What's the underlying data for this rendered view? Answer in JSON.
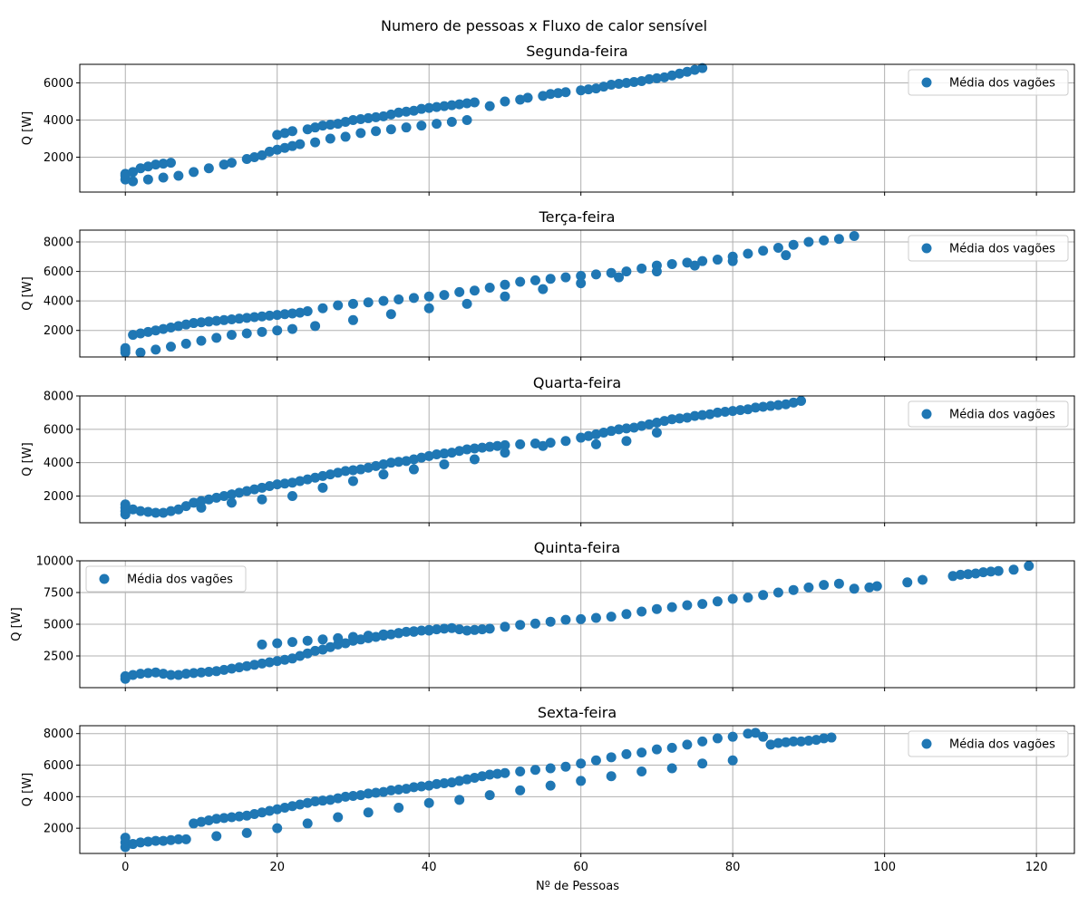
{
  "figure": {
    "suptitle": "Numero de pessoas x Fluxo de calor sensível",
    "xlabel": "Nº de Pessoas",
    "marker_color": "#1f77b4",
    "grid_color": "#b0b0b0"
  },
  "chart_data": [
    {
      "type": "scatter",
      "title": "Segunda-feira",
      "xlabel": "",
      "ylabel": "Q [W]",
      "xlim": [
        -6,
        125
      ],
      "ylim": [
        120,
        7000
      ],
      "xticks": [
        "0",
        "20",
        "40",
        "60",
        "80",
        "100",
        "120"
      ],
      "yticks": [
        "2000",
        "4000",
        "6000"
      ],
      "grid": true,
      "legend": {
        "label": "Média dos vagões",
        "position": "upper right"
      },
      "series": [
        {
          "name": "Média dos vagões",
          "x": [
            0,
            0,
            0,
            1,
            2,
            3,
            4,
            5,
            6,
            1,
            3,
            5,
            7,
            9,
            11,
            13,
            14,
            16,
            17,
            18,
            19,
            20,
            21,
            22,
            20,
            21,
            22,
            24,
            25,
            26,
            27,
            28,
            29,
            30,
            31,
            32,
            33,
            34,
            35,
            36,
            37,
            38,
            39,
            40,
            41,
            42,
            43,
            44,
            45,
            46,
            48,
            50,
            52,
            53,
            55,
            56,
            57,
            58,
            60,
            61,
            62,
            63,
            64,
            65,
            66,
            67,
            68,
            69,
            70,
            71,
            72,
            73,
            74,
            75,
            76,
            23,
            25,
            27,
            29,
            31,
            33,
            35,
            37,
            39,
            41,
            43,
            45
          ],
          "y": [
            800,
            1000,
            1100,
            1200,
            1400,
            1500,
            1600,
            1650,
            1700,
            700,
            800,
            900,
            1000,
            1200,
            1400,
            1600,
            1700,
            1900,
            2000,
            2100,
            2300,
            2400,
            2500,
            2600,
            3200,
            3300,
            3400,
            3500,
            3600,
            3700,
            3750,
            3800,
            3900,
            4000,
            4050,
            4100,
            4150,
            4200,
            4300,
            4400,
            4450,
            4500,
            4600,
            4650,
            4700,
            4750,
            4800,
            4850,
            4900,
            4950,
            4750,
            5000,
            5100,
            5200,
            5300,
            5400,
            5450,
            5500,
            5600,
            5650,
            5700,
            5800,
            5900,
            5950,
            6000,
            6050,
            6100,
            6200,
            6250,
            6300,
            6400,
            6500,
            6600,
            6700,
            6800,
            2700,
            2800,
            3000,
            3100,
            3300,
            3400,
            3500,
            3600,
            3700,
            3800,
            3900,
            4000
          ]
        }
      ]
    },
    {
      "type": "scatter",
      "title": "Terça-feira",
      "xlabel": "",
      "ylabel": "Q [W]",
      "xlim": [
        -6,
        125
      ],
      "ylim": [
        200,
        8800
      ],
      "xticks": [
        "0",
        "20",
        "40",
        "60",
        "80",
        "100",
        "120"
      ],
      "yticks": [
        "2000",
        "4000",
        "6000",
        "8000"
      ],
      "grid": true,
      "legend": {
        "label": "Média dos vagões",
        "position": "upper right"
      },
      "series": [
        {
          "name": "Média dos vagões",
          "x": [
            0,
            0,
            0,
            1,
            2,
            3,
            4,
            5,
            6,
            7,
            8,
            9,
            10,
            11,
            12,
            13,
            14,
            15,
            16,
            17,
            18,
            19,
            20,
            21,
            22,
            23,
            24,
            26,
            28,
            30,
            32,
            34,
            36,
            38,
            40,
            42,
            44,
            46,
            48,
            50,
            52,
            54,
            56,
            58,
            60,
            62,
            64,
            66,
            68,
            70,
            72,
            74,
            76,
            78,
            80,
            82,
            84,
            86,
            88,
            90,
            92,
            94,
            96,
            2,
            4,
            6,
            8,
            10,
            12,
            14,
            16,
            18,
            20,
            22,
            25,
            30,
            35,
            40,
            45,
            50,
            55,
            60,
            65,
            70,
            75,
            80,
            87
          ],
          "y": [
            500,
            650,
            800,
            1700,
            1800,
            1900,
            2000,
            2100,
            2200,
            2300,
            2400,
            2500,
            2550,
            2600,
            2650,
            2700,
            2750,
            2800,
            2850,
            2900,
            2950,
            3000,
            3050,
            3100,
            3150,
            3200,
            3300,
            3500,
            3700,
            3800,
            3900,
            4000,
            4100,
            4200,
            4300,
            4400,
            4600,
            4700,
            4900,
            5100,
            5300,
            5400,
            5500,
            5600,
            5700,
            5800,
            5900,
            6000,
            6200,
            6400,
            6500,
            6600,
            6700,
            6800,
            7000,
            7200,
            7400,
            7600,
            7800,
            8000,
            8100,
            8200,
            8400,
            500,
            700,
            900,
            1100,
            1300,
            1500,
            1700,
            1800,
            1900,
            2000,
            2100,
            2300,
            2700,
            3100,
            3500,
            3800,
            4300,
            4800,
            5200,
            5600,
            6000,
            6400,
            6700,
            7100
          ]
        }
      ]
    },
    {
      "type": "scatter",
      "title": "Quarta-feira",
      "xlabel": "",
      "ylabel": "Q [W]",
      "xlim": [
        -6,
        125
      ],
      "ylim": [
        400,
        8000
      ],
      "xticks": [
        "0",
        "20",
        "40",
        "60",
        "80",
        "100",
        "120"
      ],
      "yticks": [
        "2000",
        "4000",
        "6000",
        "8000"
      ],
      "grid": true,
      "legend": {
        "label": "Média dos vagões",
        "position": "upper right"
      },
      "series": [
        {
          "name": "Média dos vagões",
          "x": [
            0,
            0,
            0,
            0,
            1,
            2,
            3,
            4,
            5,
            6,
            7,
            8,
            9,
            10,
            11,
            12,
            13,
            14,
            15,
            16,
            17,
            18,
            19,
            20,
            21,
            22,
            23,
            24,
            25,
            26,
            27,
            28,
            29,
            30,
            31,
            32,
            33,
            34,
            35,
            36,
            37,
            38,
            39,
            40,
            41,
            42,
            43,
            44,
            45,
            46,
            47,
            48,
            49,
            50,
            52,
            54,
            56,
            58,
            60,
            61,
            62,
            63,
            64,
            65,
            66,
            67,
            68,
            69,
            70,
            71,
            72,
            73,
            74,
            75,
            76,
            77,
            78,
            79,
            80,
            81,
            82,
            83,
            84,
            85,
            86,
            87,
            88,
            89,
            10,
            14,
            18,
            22,
            26,
            30,
            34,
            38,
            42,
            46,
            50,
            55,
            62,
            66,
            70
          ],
          "y": [
            900,
            1100,
            1300,
            1500,
            1200,
            1100,
            1050,
            1000,
            1000,
            1100,
            1200,
            1400,
            1600,
            1700,
            1800,
            1900,
            2000,
            2100,
            2200,
            2300,
            2400,
            2500,
            2600,
            2700,
            2750,
            2800,
            2900,
            3000,
            3100,
            3200,
            3300,
            3400,
            3500,
            3550,
            3600,
            3700,
            3800,
            3900,
            4000,
            4050,
            4100,
            4200,
            4300,
            4400,
            4500,
            4550,
            4600,
            4700,
            4800,
            4850,
            4900,
            4950,
            5000,
            5050,
            5100,
            5150,
            5200,
            5300,
            5500,
            5600,
            5700,
            5800,
            5900,
            6000,
            6050,
            6100,
            6200,
            6300,
            6400,
            6500,
            6600,
            6650,
            6700,
            6800,
            6850,
            6900,
            7000,
            7050,
            7100,
            7150,
            7200,
            7300,
            7350,
            7400,
            7450,
            7500,
            7600,
            7700,
            1300,
            1600,
            1800,
            2000,
            2500,
            2900,
            3300,
            3600,
            3900,
            4200,
            4600,
            5000,
            5100,
            5300,
            5800
          ]
        }
      ]
    },
    {
      "type": "scatter",
      "title": "Quinta-feira",
      "xlabel": "",
      "ylabel": "Q [W]",
      "xlim": [
        -6,
        125
      ],
      "ylim": [
        0,
        10000
      ],
      "xticks": [
        "0",
        "20",
        "40",
        "60",
        "80",
        "100",
        "120"
      ],
      "yticks": [
        "2500",
        "5000",
        "7500",
        "10000"
      ],
      "grid": true,
      "legend": {
        "label": "Média dos vagões",
        "position": "upper left"
      },
      "series": [
        {
          "name": "Média dos vagões",
          "x": [
            0,
            0,
            1,
            2,
            3,
            4,
            5,
            6,
            7,
            8,
            9,
            10,
            11,
            12,
            13,
            14,
            15,
            16,
            17,
            18,
            19,
            20,
            21,
            22,
            23,
            24,
            25,
            26,
            27,
            28,
            29,
            30,
            31,
            32,
            33,
            34,
            35,
            36,
            37,
            38,
            39,
            40,
            41,
            42,
            43,
            44,
            45,
            46,
            47,
            48,
            50,
            52,
            54,
            56,
            58,
            60,
            62,
            64,
            66,
            68,
            70,
            72,
            74,
            76,
            78,
            80,
            82,
            84,
            86,
            88,
            90,
            92,
            94,
            96,
            98,
            99,
            103,
            105,
            109,
            110,
            111,
            112,
            113,
            114,
            115,
            117,
            119,
            18,
            20,
            22,
            24,
            26,
            28,
            30,
            32,
            34,
            36,
            38,
            40
          ],
          "y": [
            700,
            900,
            1000,
            1100,
            1150,
            1200,
            1100,
            1000,
            1000,
            1100,
            1150,
            1200,
            1250,
            1300,
            1400,
            1500,
            1600,
            1700,
            1800,
            1900,
            2000,
            2100,
            2200,
            2300,
            2500,
            2700,
            2900,
            3000,
            3200,
            3400,
            3500,
            3700,
            3800,
            3900,
            4000,
            4100,
            4200,
            4300,
            4400,
            4450,
            4500,
            4550,
            4600,
            4650,
            4700,
            4600,
            4500,
            4550,
            4600,
            4650,
            4800,
            4950,
            5050,
            5200,
            5350,
            5400,
            5500,
            5600,
            5800,
            6000,
            6200,
            6350,
            6500,
            6600,
            6800,
            7000,
            7100,
            7300,
            7500,
            7700,
            7900,
            8100,
            8200,
            7800,
            7900,
            8000,
            8300,
            8500,
            8800,
            8900,
            8950,
            9000,
            9100,
            9150,
            9200,
            9300,
            9600,
            3400,
            3500,
            3600,
            3700,
            3800,
            3900,
            4000,
            4100,
            4200,
            4300,
            4400,
            4500
          ]
        }
      ]
    },
    {
      "type": "scatter",
      "title": "Sexta-feira",
      "xlabel": "Nº de Pessoas",
      "ylabel": "Q [W]",
      "xlim": [
        -6,
        125
      ],
      "ylim": [
        400,
        8500
      ],
      "xticks": [
        "0",
        "20",
        "40",
        "60",
        "80",
        "100",
        "120"
      ],
      "yticks": [
        "2000",
        "4000",
        "6000",
        "8000"
      ],
      "grid": true,
      "legend": {
        "label": "Média dos vagões",
        "position": "upper right"
      },
      "series": [
        {
          "name": "Média dos vagões",
          "x": [
            0,
            0,
            0,
            1,
            2,
            3,
            4,
            5,
            6,
            7,
            8,
            9,
            10,
            11,
            12,
            13,
            14,
            15,
            16,
            17,
            18,
            19,
            20,
            21,
            22,
            23,
            24,
            25,
            26,
            27,
            28,
            29,
            30,
            31,
            32,
            33,
            34,
            35,
            36,
            37,
            38,
            39,
            40,
            41,
            42,
            43,
            44,
            45,
            46,
            47,
            48,
            49,
            50,
            52,
            54,
            56,
            58,
            60,
            62,
            64,
            66,
            68,
            70,
            72,
            74,
            76,
            78,
            80,
            82,
            83,
            84,
            85,
            86,
            87,
            88,
            89,
            90,
            91,
            92,
            93,
            12,
            16,
            20,
            24,
            28,
            32,
            36,
            40,
            44,
            48,
            52,
            56,
            60,
            64,
            68,
            72,
            76,
            80
          ],
          "y": [
            800,
            1100,
            1400,
            1000,
            1100,
            1150,
            1200,
            1200,
            1250,
            1300,
            1300,
            2300,
            2400,
            2500,
            2600,
            2650,
            2700,
            2750,
            2800,
            2900,
            3000,
            3100,
            3200,
            3300,
            3400,
            3500,
            3600,
            3700,
            3750,
            3800,
            3900,
            4000,
            4050,
            4100,
            4200,
            4250,
            4300,
            4400,
            4450,
            4500,
            4600,
            4650,
            4700,
            4800,
            4850,
            4900,
            5000,
            5100,
            5200,
            5300,
            5400,
            5450,
            5500,
            5600,
            5700,
            5800,
            5900,
            6100,
            6300,
            6500,
            6700,
            6800,
            7000,
            7100,
            7300,
            7500,
            7700,
            7800,
            8000,
            8050,
            7800,
            7300,
            7400,
            7450,
            7500,
            7500,
            7550,
            7600,
            7700,
            7750,
            1500,
            1700,
            2000,
            2300,
            2700,
            3000,
            3300,
            3600,
            3800,
            4100,
            4400,
            4700,
            5000,
            5300,
            5600,
            5800,
            6100,
            6300
          ]
        }
      ]
    }
  ]
}
